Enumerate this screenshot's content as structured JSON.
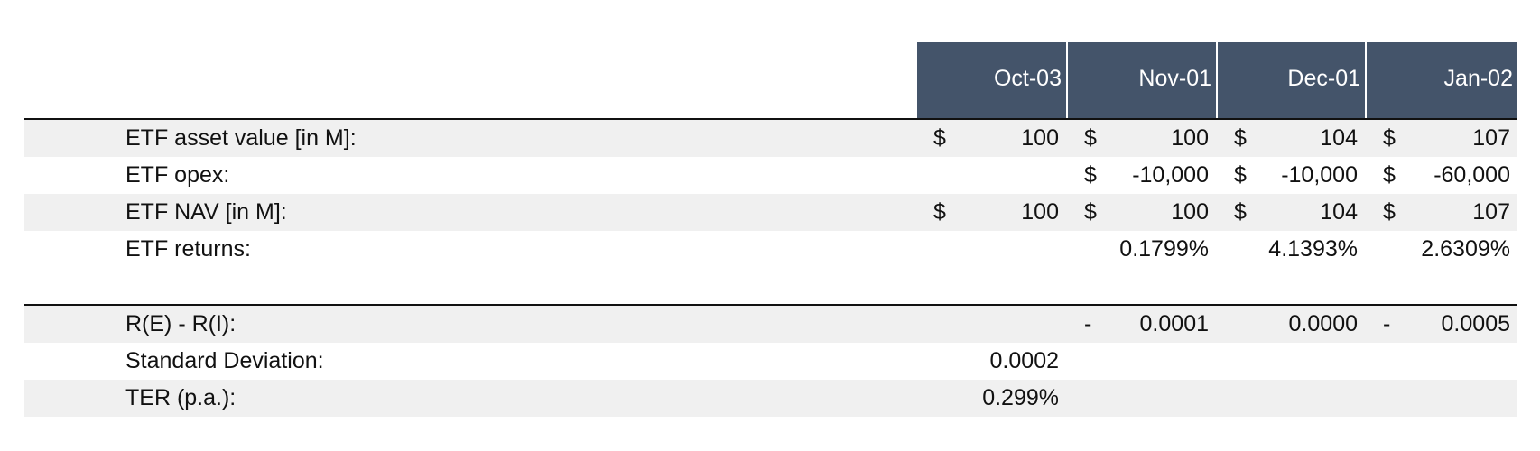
{
  "table": {
    "columns": [
      "Oct-03",
      "Nov-01",
      "Dec-01",
      "Jan-02"
    ],
    "sections": [
      {
        "rows": [
          {
            "label": "ETF asset value [in M]:",
            "cells": [
              {
                "prefix": "$",
                "text": "100"
              },
              {
                "prefix": "$",
                "text": "100"
              },
              {
                "prefix": "$",
                "text": "104"
              },
              {
                "prefix": "$",
                "text": "107"
              }
            ]
          },
          {
            "label": "ETF opex:",
            "cells": [
              null,
              {
                "prefix": "$",
                "text": "-10,000"
              },
              {
                "prefix": "$",
                "text": "-10,000"
              },
              {
                "prefix": "$",
                "text": "-60,000"
              }
            ]
          },
          {
            "label": "ETF NAV [in M]:",
            "cells": [
              {
                "prefix": "$",
                "text": "100"
              },
              {
                "prefix": "$",
                "text": "100"
              },
              {
                "prefix": "$",
                "text": "104"
              },
              {
                "prefix": "$",
                "text": "107"
              }
            ]
          },
          {
            "label": "ETF returns:",
            "cells": [
              null,
              {
                "text": "0.1799%"
              },
              {
                "text": "4.1393%"
              },
              {
                "text": "2.6309%"
              }
            ]
          }
        ]
      },
      {
        "rows": [
          {
            "label": "R(E) - R(I):",
            "cells": [
              null,
              {
                "prefix": "-",
                "text": "0.0001"
              },
              {
                "text": "0.0000"
              },
              {
                "prefix": "-",
                "text": "0.0005"
              }
            ]
          },
          {
            "label": "Standard Deviation:",
            "cells": [
              {
                "text": "0.0002"
              },
              null,
              null,
              null
            ]
          },
          {
            "label": "TER (p.a.):",
            "cells": [
              {
                "text": "0.299%"
              },
              null,
              null,
              null
            ]
          }
        ]
      }
    ]
  }
}
